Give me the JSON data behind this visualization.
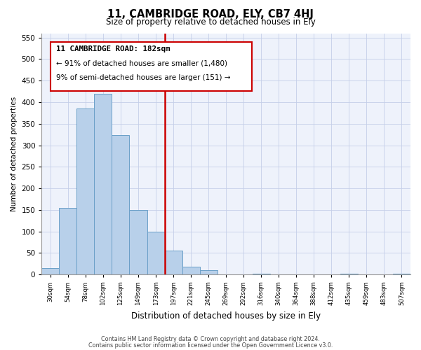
{
  "title": "11, CAMBRIDGE ROAD, ELY, CB7 4HJ",
  "subtitle": "Size of property relative to detached houses in Ely",
  "xlabel": "Distribution of detached houses by size in Ely",
  "ylabel": "Number of detached properties",
  "bin_labels": [
    "30sqm",
    "54sqm",
    "78sqm",
    "102sqm",
    "125sqm",
    "149sqm",
    "173sqm",
    "197sqm",
    "221sqm",
    "245sqm",
    "269sqm",
    "292sqm",
    "316sqm",
    "340sqm",
    "364sqm",
    "388sqm",
    "412sqm",
    "435sqm",
    "459sqm",
    "483sqm",
    "507sqm"
  ],
  "bar_values": [
    15,
    155,
    385,
    420,
    323,
    150,
    100,
    55,
    18,
    10,
    0,
    0,
    2,
    0,
    0,
    0,
    0,
    2,
    0,
    0,
    2
  ],
  "bar_color": "#b8d0ea",
  "bar_edge_color": "#6a9fc8",
  "line_color": "#cc0000",
  "annotation_line1": "11 CAMBRIDGE ROAD: 182sqm",
  "annotation_line2": "← 91% of detached houses are smaller (1,480)",
  "annotation_line3": "9% of semi-detached houses are larger (151) →",
  "annotation_box_color": "#cc0000",
  "ylim": [
    0,
    560
  ],
  "yticks": [
    0,
    50,
    100,
    150,
    200,
    250,
    300,
    350,
    400,
    450,
    500,
    550
  ],
  "footer_line1": "Contains HM Land Registry data © Crown copyright and database right 2024.",
  "footer_line2": "Contains public sector information licensed under the Open Government Licence v3.0.",
  "bg_color": "#eef2fb",
  "grid_color": "#c5cfe8"
}
